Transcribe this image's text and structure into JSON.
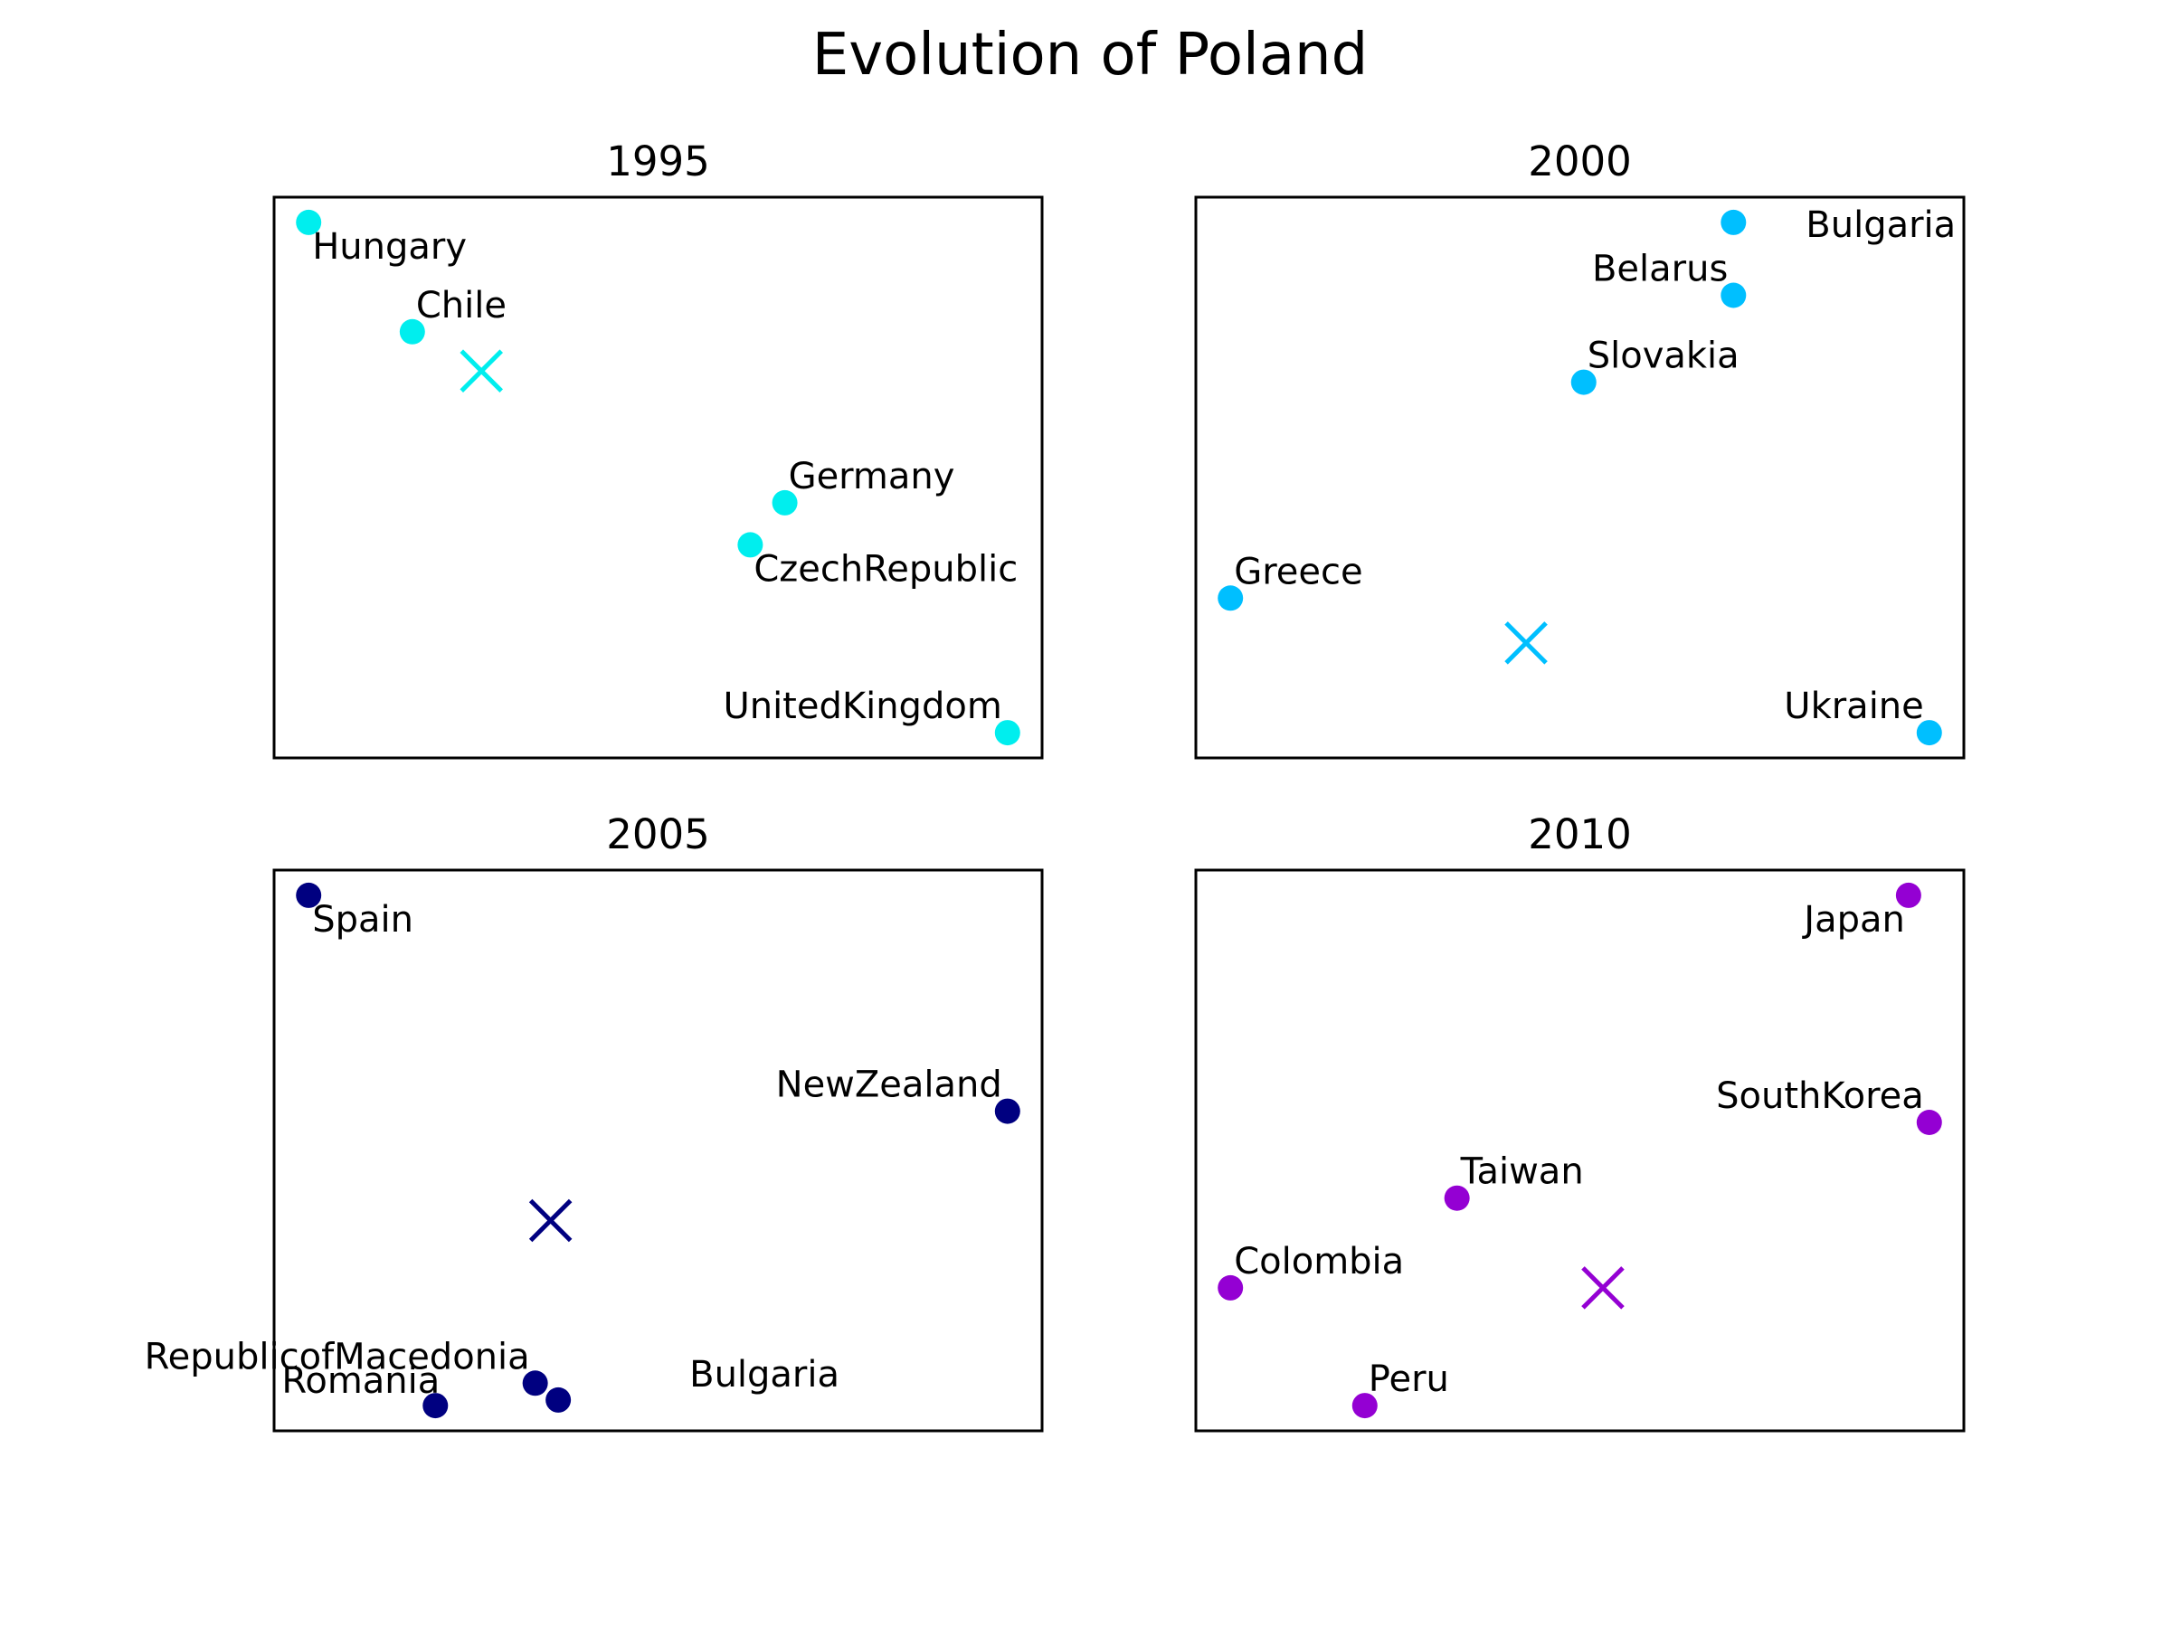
{
  "title": "Evolution of Poland",
  "chart_data": [
    {
      "type": "scatter",
      "title": "1995",
      "color": "#00eeee",
      "xlim": [
        0.0,
        1.0
      ],
      "ylim": [
        0.0,
        1.0
      ],
      "axis_ticks": false,
      "grid": false,
      "points": [
        {
          "name": "Hungary",
          "x": 0.045,
          "y": 0.955,
          "label_side": "below-right"
        },
        {
          "name": "Chile",
          "x": 0.18,
          "y": 0.76,
          "label_side": "above-right"
        },
        {
          "name": "Germany",
          "x": 0.665,
          "y": 0.455,
          "label_side": "above-right"
        },
        {
          "name": "CzechRepublic",
          "x": 0.62,
          "y": 0.38,
          "label_side": "below-right"
        },
        {
          "name": "UnitedKingdom",
          "x": 0.955,
          "y": 0.045,
          "label_side": "above-left"
        }
      ],
      "center": {
        "x": 0.27,
        "y": 0.69
      }
    },
    {
      "type": "scatter",
      "title": "2000",
      "color": "#00bfff",
      "xlim": [
        0.0,
        1.0
      ],
      "ylim": [
        0.0,
        1.0
      ],
      "axis_ticks": false,
      "grid": false,
      "points": [
        {
          "name": "Bulgaria",
          "x": 0.7,
          "y": 0.955,
          "label_side": "right"
        },
        {
          "name": "Belarus",
          "x": 0.7,
          "y": 0.825,
          "label_side": "above-left"
        },
        {
          "name": "Slovakia",
          "x": 0.505,
          "y": 0.67,
          "label_side": "above-right"
        },
        {
          "name": "Greece",
          "x": 0.045,
          "y": 0.285,
          "label_side": "above-right"
        },
        {
          "name": "Ukraine",
          "x": 0.955,
          "y": 0.045,
          "label_side": "above-left"
        }
      ],
      "center": {
        "x": 0.43,
        "y": 0.205
      }
    },
    {
      "type": "scatter",
      "title": "2005",
      "color": "#000080",
      "xlim": [
        0.0,
        1.0
      ],
      "ylim": [
        0.0,
        1.0
      ],
      "axis_ticks": false,
      "grid": false,
      "points": [
        {
          "name": "Spain",
          "x": 0.045,
          "y": 0.955,
          "label_side": "below-right"
        },
        {
          "name": "NewZealand",
          "x": 0.955,
          "y": 0.57,
          "label_side": "above-left"
        },
        {
          "name": "RepublicofMacedonia",
          "x": 0.34,
          "y": 0.085,
          "label_side": "above-left"
        },
        {
          "name": "Bulgaria",
          "x": 0.37,
          "y": 0.055,
          "label_side": "far-right"
        },
        {
          "name": "Romania",
          "x": 0.21,
          "y": 0.045,
          "label_side": "left"
        }
      ],
      "center": {
        "x": 0.36,
        "y": 0.375
      }
    },
    {
      "type": "scatter",
      "title": "2010",
      "color": "#9400d3",
      "xlim": [
        0.0,
        1.0
      ],
      "ylim": [
        0.0,
        1.0
      ],
      "axis_ticks": false,
      "grid": false,
      "points": [
        {
          "name": "Japan",
          "x": 0.928,
          "y": 0.955,
          "label_side": "below-left"
        },
        {
          "name": "SouthKorea",
          "x": 0.955,
          "y": 0.55,
          "label_side": "above-left"
        },
        {
          "name": "Taiwan",
          "x": 0.34,
          "y": 0.415,
          "label_side": "above-right"
        },
        {
          "name": "Colombia",
          "x": 0.045,
          "y": 0.255,
          "label_side": "above-right"
        },
        {
          "name": "Peru",
          "x": 0.22,
          "y": 0.045,
          "label_side": "above-right"
        }
      ],
      "center": {
        "x": 0.53,
        "y": 0.255
      }
    }
  ]
}
